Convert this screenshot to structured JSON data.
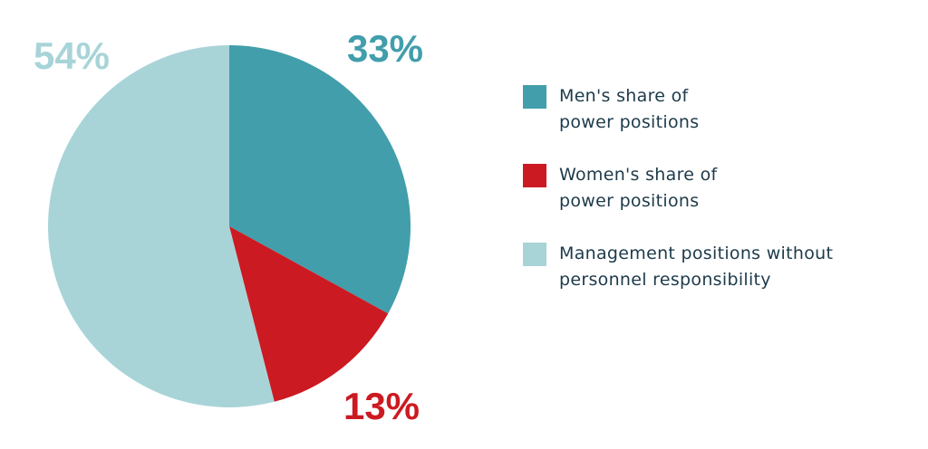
{
  "chart_data": {
    "type": "pie",
    "categories": [
      "Men's share of power positions",
      "Women's share of power positions",
      "Management positions without personnel responsibility"
    ],
    "values": [
      33,
      13,
      54
    ],
    "value_labels": [
      "33%",
      "13%",
      "54%"
    ],
    "colors": [
      "#429eab",
      "#cc1a22",
      "#a8d4d8"
    ]
  }
}
